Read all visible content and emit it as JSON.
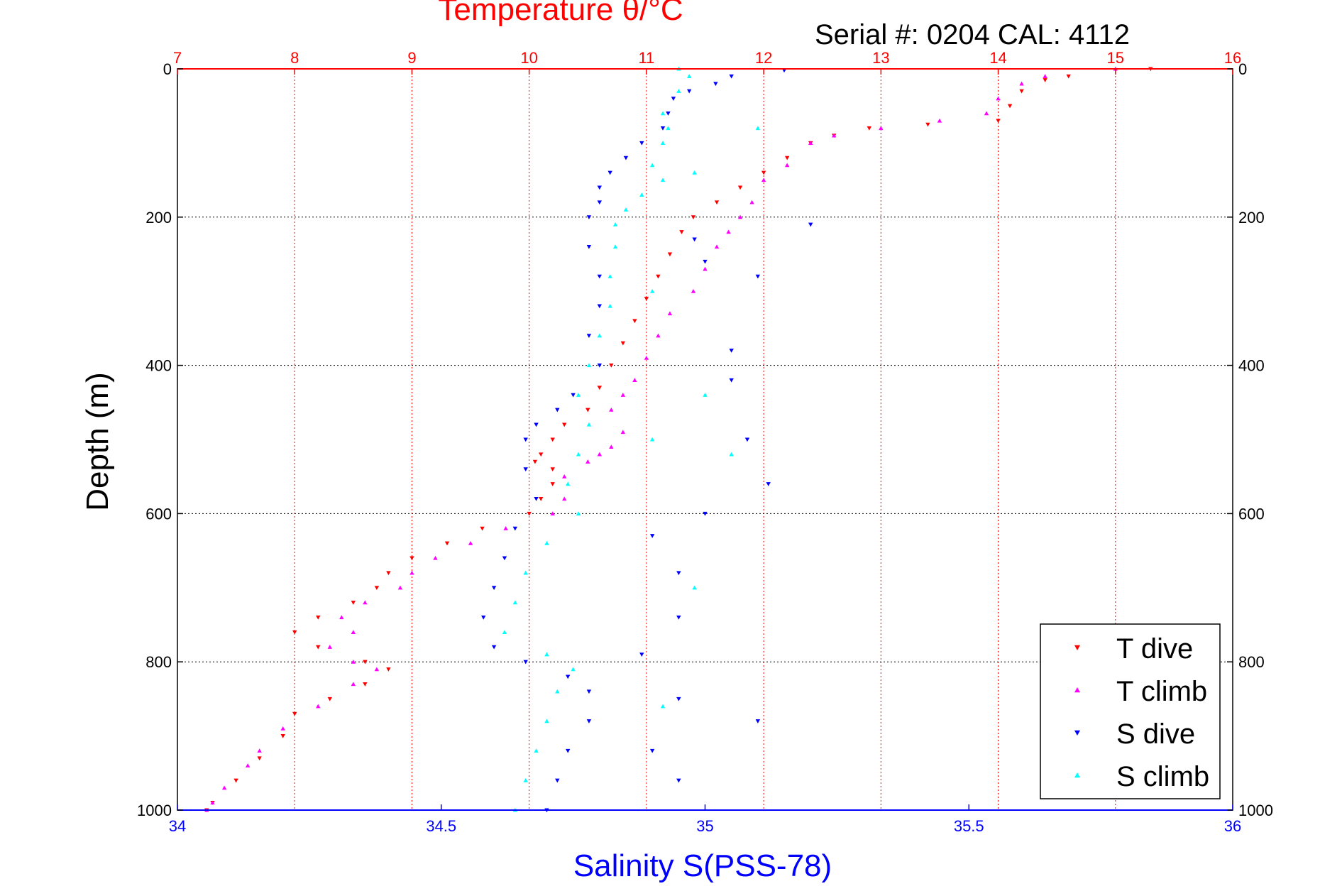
{
  "chart_data": {
    "type": "scatter",
    "title": "Temperature θ/°C",
    "subtitle": "Serial #: 0204  CAL: 4112",
    "xlabel": "Salinity S(PSS-78)",
    "ylabel": "Depth (m)",
    "y_reversed": true,
    "ylim": [
      0,
      1000
    ],
    "y_ticks": [
      "0",
      "200",
      "400",
      "600",
      "800",
      "1000"
    ],
    "xlim_salinity": [
      34,
      36
    ],
    "x_ticks_salinity": [
      "34",
      "34.5",
      "35",
      "35.5",
      "36"
    ],
    "xlim_temperature": [
      7,
      16
    ],
    "x_ticks_temperature": [
      "7",
      "8",
      "9",
      "10",
      "11",
      "12",
      "13",
      "14",
      "15",
      "16"
    ],
    "grid": true,
    "legend_position": "bottom-right",
    "colors": {
      "temperature_axis": "#ff0000",
      "salinity_axis": "#0000ff"
    },
    "series": [
      {
        "name": "T dive",
        "axis": "temperature",
        "color": "#ff0000",
        "marker": "triangle-down",
        "points": [
          [
            15.3,
            0
          ],
          [
            14.6,
            10
          ],
          [
            14.4,
            15
          ],
          [
            14.2,
            30
          ],
          [
            14.1,
            50
          ],
          [
            14.0,
            70
          ],
          [
            13.4,
            75
          ],
          [
            12.9,
            80
          ],
          [
            12.6,
            90
          ],
          [
            12.4,
            100
          ],
          [
            12.2,
            120
          ],
          [
            12.0,
            140
          ],
          [
            11.8,
            160
          ],
          [
            11.6,
            180
          ],
          [
            11.4,
            200
          ],
          [
            11.3,
            220
          ],
          [
            11.2,
            250
          ],
          [
            11.1,
            280
          ],
          [
            11.0,
            310
          ],
          [
            10.9,
            340
          ],
          [
            10.8,
            370
          ],
          [
            10.7,
            400
          ],
          [
            10.6,
            430
          ],
          [
            10.5,
            460
          ],
          [
            10.3,
            480
          ],
          [
            10.2,
            500
          ],
          [
            10.1,
            520
          ],
          [
            10.05,
            530
          ],
          [
            10.2,
            540
          ],
          [
            10.2,
            560
          ],
          [
            10.1,
            580
          ],
          [
            10.0,
            600
          ],
          [
            9.6,
            620
          ],
          [
            9.3,
            640
          ],
          [
            9.0,
            660
          ],
          [
            8.8,
            680
          ],
          [
            8.7,
            700
          ],
          [
            8.5,
            720
          ],
          [
            8.2,
            740
          ],
          [
            8.0,
            760
          ],
          [
            8.2,
            780
          ],
          [
            8.6,
            800
          ],
          [
            8.8,
            810
          ],
          [
            8.6,
            830
          ],
          [
            8.3,
            850
          ],
          [
            8.0,
            870
          ],
          [
            7.9,
            900
          ],
          [
            7.7,
            930
          ],
          [
            7.5,
            960
          ],
          [
            7.3,
            990
          ],
          [
            7.25,
            1000
          ]
        ]
      },
      {
        "name": "T climb",
        "axis": "temperature",
        "color": "#ff00ff",
        "marker": "triangle-up",
        "points": [
          [
            15.0,
            0
          ],
          [
            14.4,
            10
          ],
          [
            14.2,
            20
          ],
          [
            14.0,
            40
          ],
          [
            13.9,
            60
          ],
          [
            13.5,
            70
          ],
          [
            13.0,
            80
          ],
          [
            12.6,
            90
          ],
          [
            12.4,
            100
          ],
          [
            12.2,
            130
          ],
          [
            12.0,
            150
          ],
          [
            11.9,
            180
          ],
          [
            11.8,
            200
          ],
          [
            11.7,
            220
          ],
          [
            11.6,
            240
          ],
          [
            11.5,
            270
          ],
          [
            11.4,
            300
          ],
          [
            11.2,
            330
          ],
          [
            11.1,
            360
          ],
          [
            11.0,
            390
          ],
          [
            10.9,
            420
          ],
          [
            10.8,
            440
          ],
          [
            10.7,
            460
          ],
          [
            10.8,
            490
          ],
          [
            10.7,
            510
          ],
          [
            10.6,
            520
          ],
          [
            10.5,
            530
          ],
          [
            10.3,
            550
          ],
          [
            10.3,
            580
          ],
          [
            10.2,
            600
          ],
          [
            9.8,
            620
          ],
          [
            9.5,
            640
          ],
          [
            9.2,
            660
          ],
          [
            9.0,
            680
          ],
          [
            8.9,
            700
          ],
          [
            8.6,
            720
          ],
          [
            8.4,
            740
          ],
          [
            8.5,
            760
          ],
          [
            8.3,
            780
          ],
          [
            8.5,
            800
          ],
          [
            8.7,
            810
          ],
          [
            8.5,
            830
          ],
          [
            8.2,
            860
          ],
          [
            7.9,
            890
          ],
          [
            7.7,
            920
          ],
          [
            7.6,
            940
          ],
          [
            7.4,
            970
          ],
          [
            7.3,
            990
          ],
          [
            7.25,
            1000
          ]
        ]
      },
      {
        "name": "S dive",
        "axis": "salinity",
        "color": "#0000ff",
        "marker": "triangle-down",
        "points": [
          [
            35.05,
            10
          ],
          [
            35.02,
            20
          ],
          [
            34.97,
            30
          ],
          [
            34.94,
            40
          ],
          [
            34.93,
            60
          ],
          [
            34.92,
            80
          ],
          [
            34.88,
            100
          ],
          [
            34.85,
            120
          ],
          [
            34.82,
            140
          ],
          [
            34.8,
            160
          ],
          [
            34.8,
            180
          ],
          [
            34.78,
            200
          ],
          [
            34.78,
            240
          ],
          [
            34.8,
            280
          ],
          [
            34.8,
            320
          ],
          [
            34.78,
            360
          ],
          [
            34.8,
            400
          ],
          [
            34.75,
            440
          ],
          [
            34.72,
            460
          ],
          [
            34.68,
            480
          ],
          [
            34.66,
            500
          ],
          [
            34.66,
            540
          ],
          [
            34.68,
            580
          ],
          [
            34.64,
            620
          ],
          [
            34.62,
            660
          ],
          [
            34.6,
            700
          ],
          [
            34.58,
            740
          ],
          [
            34.6,
            780
          ],
          [
            34.66,
            800
          ],
          [
            34.74,
            820
          ],
          [
            34.78,
            840
          ],
          [
            34.78,
            880
          ],
          [
            34.74,
            920
          ],
          [
            34.72,
            960
          ],
          [
            34.7,
            1000
          ],
          [
            35.15,
            2
          ],
          [
            35.2,
            210
          ],
          [
            35.0,
            260
          ],
          [
            35.1,
            280
          ],
          [
            35.05,
            380
          ],
          [
            35.08,
            500
          ],
          [
            35.12,
            560
          ],
          [
            35.0,
            600
          ],
          [
            34.9,
            630
          ],
          [
            34.95,
            680
          ],
          [
            34.95,
            740
          ],
          [
            34.88,
            790
          ],
          [
            34.95,
            850
          ],
          [
            35.1,
            880
          ],
          [
            34.9,
            920
          ],
          [
            34.95,
            960
          ],
          [
            34.98,
            230
          ],
          [
            35.05,
            420
          ]
        ]
      },
      {
        "name": "S climb",
        "axis": "salinity",
        "color": "#00ffff",
        "marker": "triangle-up",
        "points": [
          [
            34.95,
            0
          ],
          [
            34.97,
            10
          ],
          [
            34.95,
            30
          ],
          [
            34.92,
            60
          ],
          [
            34.93,
            80
          ],
          [
            34.92,
            100
          ],
          [
            34.9,
            130
          ],
          [
            34.92,
            150
          ],
          [
            34.88,
            170
          ],
          [
            34.85,
            190
          ],
          [
            34.83,
            210
          ],
          [
            34.83,
            240
          ],
          [
            34.82,
            280
          ],
          [
            34.82,
            320
          ],
          [
            34.8,
            360
          ],
          [
            34.78,
            400
          ],
          [
            34.76,
            440
          ],
          [
            34.78,
            480
          ],
          [
            34.76,
            520
          ],
          [
            34.74,
            560
          ],
          [
            34.76,
            600
          ],
          [
            34.7,
            640
          ],
          [
            34.66,
            680
          ],
          [
            34.64,
            720
          ],
          [
            34.62,
            760
          ],
          [
            34.7,
            790
          ],
          [
            34.75,
            810
          ],
          [
            34.72,
            840
          ],
          [
            34.7,
            880
          ],
          [
            34.68,
            920
          ],
          [
            34.66,
            960
          ],
          [
            34.64,
            1000
          ],
          [
            35.1,
            80
          ],
          [
            34.98,
            140
          ],
          [
            34.9,
            300
          ],
          [
            35.0,
            440
          ],
          [
            34.9,
            500
          ],
          [
            35.05,
            520
          ],
          [
            34.98,
            700
          ],
          [
            34.92,
            860
          ]
        ]
      }
    ]
  }
}
